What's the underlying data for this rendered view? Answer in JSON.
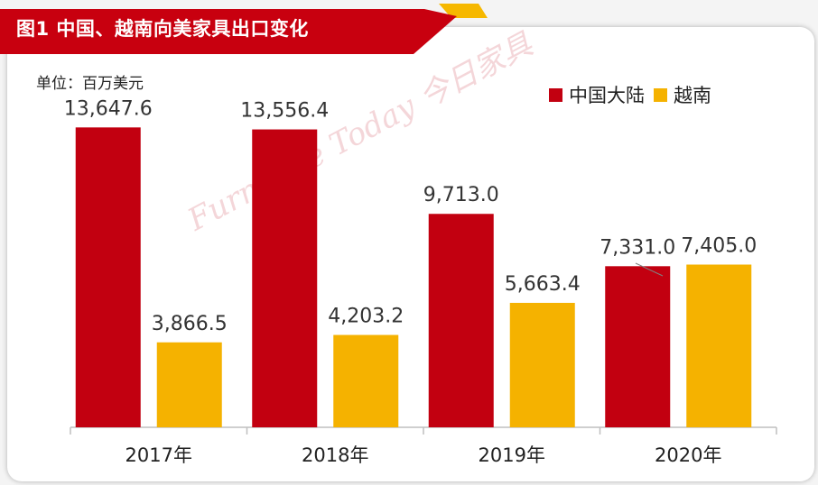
{
  "title": "图1  中国、越南向美家具出口变化",
  "unit_label": "单位：百万美元",
  "watermark": "Furniture Today 今日家具",
  "colors": {
    "title_bg": "#c8000f",
    "title_accent": "#f6b800",
    "series_china": "#c20010",
    "series_vietnam": "#f5b200"
  },
  "chart_data": {
    "type": "bar",
    "categories": [
      "2017年",
      "2018年",
      "2019年",
      "2020年"
    ],
    "series": [
      {
        "name": "中国大陆",
        "values": [
          13647.6,
          13556.4,
          9713.0,
          7331.0
        ],
        "labels": [
          "13,647.6",
          "13,556.4",
          "9,713.0",
          "7,331.0"
        ]
      },
      {
        "name": "越南",
        "values": [
          3866.5,
          4203.2,
          5663.4,
          7405.0
        ],
        "labels": [
          "3,866.5",
          "4,203.2",
          "5,663.4",
          "7,405.0"
        ]
      }
    ],
    "ylim": [
      0,
      16000
    ],
    "grid": false,
    "legend": "top-right"
  }
}
